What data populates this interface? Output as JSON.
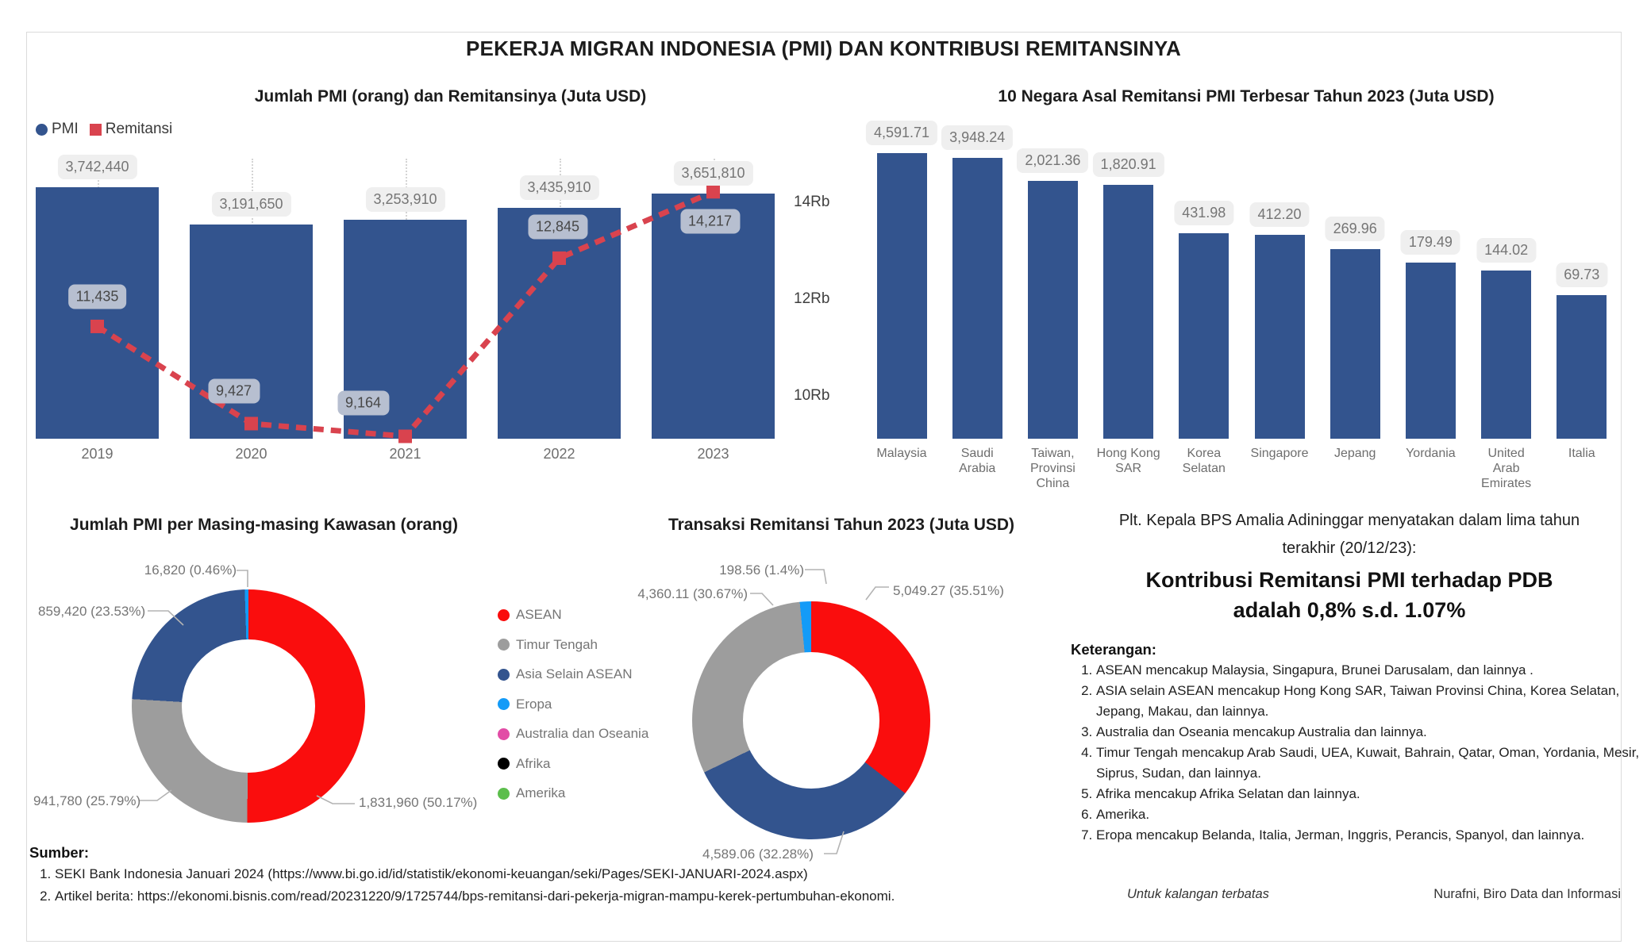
{
  "page": {
    "title": "PEKERJA MIGRAN INDONESIA (PMI) DAN KONTRIBUSI REMITANSINYA"
  },
  "colors": {
    "bar_blue": "#33548E",
    "line_red": "#D9434E",
    "donut_red": "#FA0D0D",
    "gray": "#9D9D9D",
    "bright_blue": "#149BF7",
    "pink": "#E24CA6",
    "black": "#000000",
    "green": "#5CBE4C",
    "chip_bg": "#EFEFEF",
    "chip_text": "#757575",
    "line_chip_bg": "#B7BFD0",
    "line_chip_text": "#474747",
    "leader": "#B3B3B3",
    "border": "#DBDBDB"
  },
  "chart_data": [
    {
      "id": "pmi_dan_remitansi",
      "type": "bar+line",
      "title": "Jumlah PMI (orang) dan Remitansinya (Juta USD)",
      "categories": [
        "2019",
        "2020",
        "2021",
        "2022",
        "2023"
      ],
      "series": [
        {
          "name": "PMI",
          "type": "bar",
          "color_key": "bar_blue",
          "values": [
            3742440,
            3191650,
            3253910,
            3435910,
            3651810
          ],
          "labels": [
            "3,742,440",
            "3,191,650",
            "3,253,910",
            "3,435,910",
            "3,651,810"
          ]
        },
        {
          "name": "Remitansi",
          "type": "line",
          "color_key": "line_red",
          "values": [
            11435,
            9427,
            9164,
            12845,
            14217
          ],
          "labels": [
            "11,435",
            "9,427",
            "9,164",
            "12,845",
            "14,217"
          ]
        }
      ],
      "right_axis": {
        "ticks": [
          "14Rb",
          "12Rb",
          "10Rb"
        ],
        "tick_values": [
          14000,
          12000,
          10000
        ]
      },
      "legend_position": "top-left",
      "grid": "dotted-vertical"
    },
    {
      "id": "top10_negara_remitansi",
      "type": "bar",
      "title": "10 Negara Asal Remitansi PMI Terbesar Tahun 2023 (Juta USD)",
      "categories": [
        "Malaysia",
        "Saudi\nArabia",
        "Taiwan,\nProvinsi\nChina",
        "Hong Kong\nSAR",
        "Korea\nSelatan",
        "Singapore",
        "Jepang",
        "Yordania",
        "United\nArab\nEmirates",
        "Italia"
      ],
      "values": [
        4591.71,
        3948.24,
        2021.36,
        1820.91,
        431.98,
        412.2,
        269.96,
        179.49,
        144.02,
        69.73
      ],
      "labels": [
        "4,591.71",
        "3,948.24",
        "2,021.36",
        "1,820.91",
        "431.98",
        "412.20",
        "269.96",
        "179.49",
        "144.02",
        "69.73"
      ],
      "scale": "log",
      "color_key": "bar_blue"
    },
    {
      "id": "pmi_per_kawasan",
      "type": "donut",
      "title": "Jumlah PMI per Masing-masing Kawasan (orang)",
      "slices": [
        {
          "name": "ASEAN",
          "value": 1831960,
          "pct": 50.17,
          "label": "1,831,960 (50.17%)",
          "color_key": "donut_red"
        },
        {
          "name": "Timur Tengah",
          "value": 941780,
          "pct": 25.79,
          "label": "941,780 (25.79%)",
          "color_key": "gray"
        },
        {
          "name": "Asia Selain ASEAN",
          "value": 859420,
          "pct": 23.53,
          "label": "859,420 (23.53%)",
          "color_key": "bar_blue"
        },
        {
          "name": "Eropa",
          "value": 16820,
          "pct": 0.46,
          "label": "16,820 (0.46%)",
          "color_key": "bright_blue"
        }
      ],
      "legend": [
        {
          "label": "ASEAN",
          "color_key": "donut_red"
        },
        {
          "label": "Timur Tengah",
          "color_key": "gray"
        },
        {
          "label": "Asia Selain ASEAN",
          "color_key": "bar_blue"
        },
        {
          "label": "Eropa",
          "color_key": "bright_blue"
        },
        {
          "label": "Australia dan Oseania",
          "color_key": "pink"
        },
        {
          "label": "Afrika",
          "color_key": "black"
        },
        {
          "label": "Amerika",
          "color_key": "green"
        }
      ]
    },
    {
      "id": "transaksi_remitansi_2023",
      "type": "donut",
      "title": "Transaksi Remitansi Tahun 2023 (Juta USD)",
      "slices": [
        {
          "name": "ASEAN",
          "value": 5049.27,
          "pct": 35.51,
          "label": "5,049.27 (35.51%)",
          "color_key": "donut_red"
        },
        {
          "name": "Asia Selain ASEAN",
          "value": 4589.06,
          "pct": 32.28,
          "label": "4,589.06 (32.28%)",
          "color_key": "bar_blue"
        },
        {
          "name": "Timur Tengah",
          "value": 4360.11,
          "pct": 30.67,
          "label": "4,360.11 (30.67%)",
          "color_key": "gray"
        },
        {
          "name": "Eropa",
          "value": 198.56,
          "pct": 1.4,
          "label": "198.56 (1.4%)",
          "color_key": "bright_blue"
        }
      ]
    }
  ],
  "statement": {
    "intro_line1": "Plt. Kepala BPS Amalia Adininggar menyatakan dalam lima tahun",
    "intro_line2": "terakhir (20/12/23):",
    "headline_line1": "Kontribusi Remitansi PMI terhadap PDB",
    "headline_line2": "adalah 0,8% s.d. 1.07%"
  },
  "keterangan": {
    "heading": "Keterangan:",
    "items": [
      "ASEAN mencakup Malaysia, Singapura, Brunei Darusalam, dan lainnya .",
      "ASIA selain ASEAN mencakup Hong Kong SAR, Taiwan Provinsi China, Korea Selatan, Jepang, Makau, dan lainnya.",
      "Australia dan Oseania mencakup Australia dan lainnya.",
      "Timur Tengah mencakup Arab Saudi, UEA, Kuwait, Bahrain, Qatar, Oman, Yordania, Mesir, Siprus, Sudan, dan lainnya.",
      "Afrika mencakup Afrika Selatan dan lainnya.",
      "Amerika.",
      "Eropa mencakup Belanda, Italia, Jerman, Inggris, Perancis, Spanyol, dan lainnya."
    ]
  },
  "sumber": {
    "heading": "Sumber:",
    "items": [
      "SEKI Bank Indonesia Januari 2024 (https://www.bi.go.id/id/statistik/ekonomi-keuangan/seki/Pages/SEKI-JANUARI-2024.aspx)",
      "Artikel berita: https://ekonomi.bisnis.com/read/20231220/9/1725744/bps-remitansi-dari-pekerja-migran-mampu-kerek-pertumbuhan-ekonomi."
    ]
  },
  "footer": {
    "restricted": "Untuk kalangan terbatas",
    "credit": "Nurafni, Biro Data dan Informasi"
  }
}
